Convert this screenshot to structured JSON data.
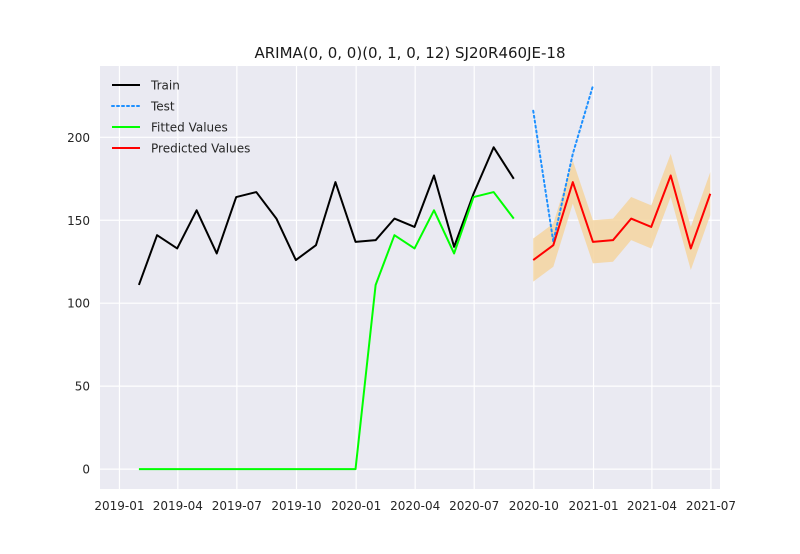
{
  "chart_data": {
    "type": "line",
    "title": "ARIMA(0, 0, 0)(0, 1, 0, 12) SJ20R460JE-18",
    "xlabel": "",
    "ylabel": "",
    "ylim": [
      -12,
      243
    ],
    "xlim": [
      "2018-12-02",
      "2021-07-15"
    ],
    "grid": true,
    "legend_position": "upper-left",
    "x_ticks": [
      {
        "date": "2019-01-01",
        "label": "2019-01"
      },
      {
        "date": "2019-04-01",
        "label": "2019-04"
      },
      {
        "date": "2019-07-01",
        "label": "2019-07"
      },
      {
        "date": "2019-10-01",
        "label": "2019-10"
      },
      {
        "date": "2020-01-01",
        "label": "2020-01"
      },
      {
        "date": "2020-04-01",
        "label": "2020-04"
      },
      {
        "date": "2020-07-01",
        "label": "2020-07"
      },
      {
        "date": "2020-10-01",
        "label": "2020-10"
      },
      {
        "date": "2021-01-01",
        "label": "2021-01"
      },
      {
        "date": "2021-04-01",
        "label": "2021-04"
      },
      {
        "date": "2021-07-01",
        "label": "2021-07"
      }
    ],
    "y_ticks": [
      0,
      50,
      100,
      150,
      200
    ],
    "series": [
      {
        "name": "Train",
        "color": "#000000",
        "style": "solid",
        "x": [
          "2019-01-31",
          "2019-02-28",
          "2019-03-31",
          "2019-04-30",
          "2019-05-31",
          "2019-06-30",
          "2019-07-31",
          "2019-08-31",
          "2019-09-30",
          "2019-10-31",
          "2019-11-30",
          "2019-12-31",
          "2020-01-31",
          "2020-02-29",
          "2020-03-31",
          "2020-04-30",
          "2020-05-31",
          "2020-06-30",
          "2020-07-31",
          "2020-08-31"
        ],
        "values": [
          111,
          141,
          133,
          156,
          130,
          164,
          167,
          151,
          126,
          135,
          173,
          137,
          138,
          151,
          146,
          177,
          134,
          166,
          194,
          175
        ]
      },
      {
        "name": "Test",
        "color": "#1e90ff",
        "style": "dotted",
        "x": [
          "2020-09-30",
          "2020-10-31",
          "2020-11-30",
          "2020-12-31"
        ],
        "values": [
          216,
          137,
          190,
          231
        ]
      },
      {
        "name": "Fitted Values",
        "color": "#00ff00",
        "style": "solid",
        "x": [
          "2019-01-31",
          "2019-02-28",
          "2019-03-31",
          "2019-04-30",
          "2019-05-31",
          "2019-06-30",
          "2019-07-31",
          "2019-08-31",
          "2019-09-30",
          "2019-10-31",
          "2019-11-30",
          "2019-12-31",
          "2020-01-31",
          "2020-02-29",
          "2020-03-31",
          "2020-04-30",
          "2020-05-31",
          "2020-06-30",
          "2020-07-31",
          "2020-08-31"
        ],
        "values": [
          0,
          0,
          0,
          0,
          0,
          0,
          0,
          0,
          0,
          0,
          0,
          0,
          111,
          141,
          133,
          156,
          130,
          164,
          167,
          151
        ]
      },
      {
        "name": "Predicted Values",
        "color": "#ff0000",
        "style": "solid",
        "x": [
          "2020-09-30",
          "2020-10-31",
          "2020-11-30",
          "2020-12-31",
          "2021-01-31",
          "2021-02-28",
          "2021-03-31",
          "2021-04-30",
          "2021-05-31",
          "2021-06-30"
        ],
        "values": [
          126,
          135,
          173,
          137,
          138,
          151,
          146,
          177,
          133,
          166
        ],
        "lower": [
          113,
          122,
          160,
          124,
          125,
          138,
          133,
          164,
          120,
          153
        ],
        "upper": [
          139,
          148,
          186,
          150,
          151,
          164,
          159,
          190,
          146,
          179
        ],
        "band_color": "#f5d5a0"
      }
    ]
  }
}
